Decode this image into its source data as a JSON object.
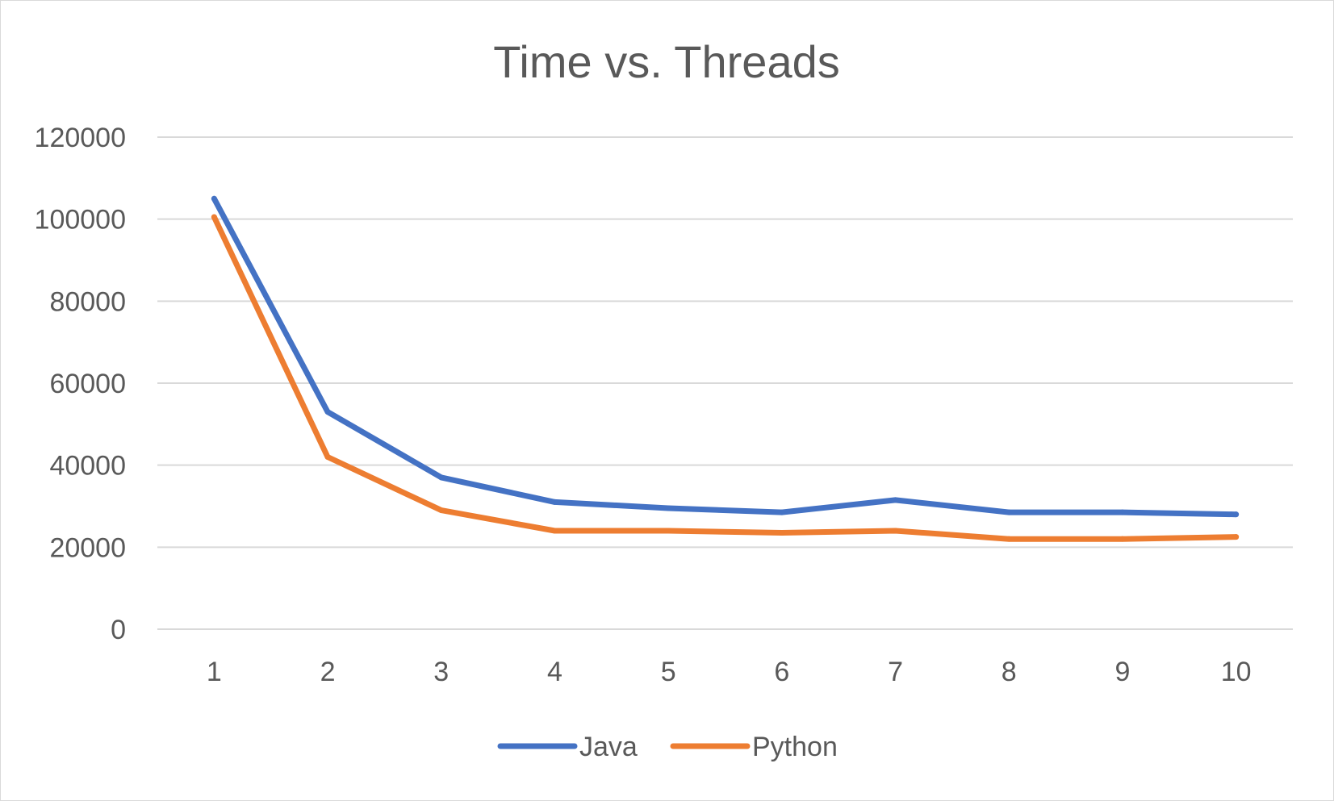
{
  "chart_data": {
    "type": "line",
    "title": "Time vs. Threads",
    "categories": [
      "1",
      "2",
      "3",
      "4",
      "5",
      "6",
      "7",
      "8",
      "9",
      "10"
    ],
    "series": [
      {
        "name": "Java",
        "color": "#4472c4",
        "values": [
          105000,
          53000,
          37000,
          31000,
          29500,
          28500,
          31500,
          28500,
          28500,
          28000
        ]
      },
      {
        "name": "Python",
        "color": "#ed7d31",
        "values": [
          100500,
          42000,
          29000,
          24000,
          24000,
          23500,
          24000,
          22000,
          22000,
          22500
        ]
      }
    ],
    "yticks": [
      "0",
      "20000",
      "40000",
      "60000",
      "80000",
      "100000",
      "120000"
    ],
    "ylim": [
      0,
      120000
    ],
    "grid": true,
    "gridline_color": "#d9d9d9",
    "legend_position": "bottom"
  }
}
